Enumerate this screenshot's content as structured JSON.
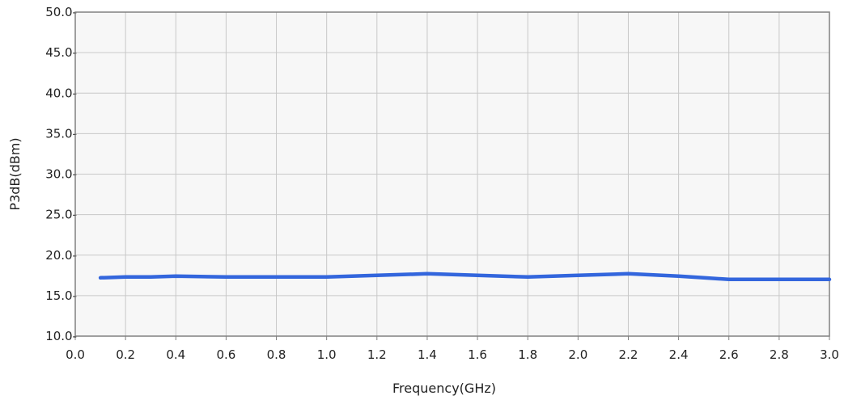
{
  "chart_data": {
    "type": "line",
    "xlabel": "Frequency(GHz)",
    "ylabel": "P3dB(dBm)",
    "xlim": [
      0.0,
      3.0
    ],
    "ylim": [
      10.0,
      50.0
    ],
    "x_ticks": [
      "0.0",
      "0.2",
      "0.4",
      "0.6",
      "0.8",
      "1.0",
      "1.2",
      "1.4",
      "1.6",
      "1.8",
      "2.0",
      "2.2",
      "2.4",
      "2.6",
      "2.8",
      "3.0"
    ],
    "y_ticks": [
      "50.0-",
      "45.0-",
      "40.0-",
      "35.0-",
      "30.0-",
      "25.0-",
      "20.0-",
      "15.0-",
      "10.0-"
    ],
    "grid": true,
    "series": [
      {
        "color": "#3366dd",
        "x": [
          0.1,
          0.2,
          0.3,
          0.4,
          0.6,
          0.8,
          1.0,
          1.2,
          1.4,
          1.6,
          1.8,
          2.0,
          2.2,
          2.4,
          2.5,
          2.6,
          2.8,
          3.0
        ],
        "y": [
          17.2,
          17.3,
          17.3,
          17.4,
          17.3,
          17.3,
          17.3,
          17.5,
          17.7,
          17.5,
          17.3,
          17.5,
          17.7,
          17.4,
          17.2,
          17.0,
          17.0,
          17.0
        ]
      }
    ]
  },
  "colors": {
    "plot_background": "#f7f7f7",
    "grid": "#c8c8c8",
    "frame": "#808080"
  }
}
